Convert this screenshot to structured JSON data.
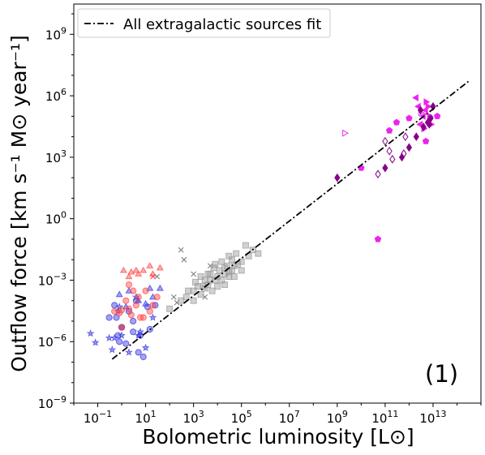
{
  "chart_data": {
    "type": "scatter",
    "title": "",
    "xlabel": "Bolometric luminosity [L⊙]",
    "ylabel": "Outflow force [km s⁻¹ M⊙ year⁻¹]",
    "x_scale": "log",
    "y_scale": "log",
    "xlim": [
      0.01,
      1000000000000000.0
    ],
    "ylim": [
      1e-09,
      30000000000.0
    ],
    "x_ticks": [
      {
        "value": 0.1,
        "base": "10",
        "exp": "−1"
      },
      {
        "value": 10,
        "base": "10",
        "exp": "1"
      },
      {
        "value": 1000,
        "base": "10",
        "exp": "3"
      },
      {
        "value": 100000,
        "base": "10",
        "exp": "5"
      },
      {
        "value": 10000000,
        "base": "10",
        "exp": "7"
      },
      {
        "value": 1000000000,
        "base": "10",
        "exp": "9"
      },
      {
        "value": 100000000000,
        "base": "10",
        "exp": "11"
      },
      {
        "value": 10000000000000,
        "base": "10",
        "exp": "13"
      }
    ],
    "y_ticks": [
      {
        "value": 1e-09,
        "base": "10",
        "exp": "−9"
      },
      {
        "value": 1e-06,
        "base": "10",
        "exp": "−6"
      },
      {
        "value": 0.001,
        "base": "10",
        "exp": "−3"
      },
      {
        "value": 1,
        "base": "10",
        "exp": "0"
      },
      {
        "value": 1000,
        "base": "10",
        "exp": "3"
      },
      {
        "value": 1000000,
        "base": "10",
        "exp": "6"
      },
      {
        "value": 1000000000,
        "base": "10",
        "exp": "9"
      }
    ],
    "grid": false,
    "legend": {
      "location": "upper-left",
      "entry": "All extragalactic sources fit"
    },
    "annotation": "(1)",
    "fit_line": {
      "x": [
        0.4,
        300000000000000.0
      ],
      "y": [
        1.4e-07,
        5000000.0
      ],
      "style": "dash-dot",
      "color": "#000000"
    },
    "series": [
      {
        "marker": "star",
        "color": "#3333dd",
        "points": [
          [
            0.05,
            2.5e-06
          ],
          [
            0.08,
            9e-07
          ],
          [
            0.3,
            1.5e-06
          ],
          [
            0.4,
            4e-07
          ],
          [
            0.5,
            1.5e-06
          ],
          [
            0.7,
            3e-05
          ],
          [
            0.8,
            5e-05
          ],
          [
            1.0,
            2e-06
          ],
          [
            2,
            3e-07
          ],
          [
            4,
            0.00015
          ],
          [
            5,
            2e-06
          ],
          [
            6,
            3e-06
          ],
          [
            10,
            5e-07
          ],
          [
            20,
            1.5e-05
          ]
        ]
      },
      {
        "marker": "circle",
        "color": "#3333dd",
        "points": [
          [
            0.3,
            1.5e-05
          ],
          [
            0.5,
            6e-05
          ],
          [
            0.6,
            1.5e-05
          ],
          [
            0.7,
            2e-06
          ],
          [
            0.8,
            1e-06
          ],
          [
            1.0,
            5e-06
          ],
          [
            1.0,
            5e-06
          ],
          [
            1.5,
            8e-07
          ],
          [
            2,
            3e-05
          ],
          [
            3,
            1e-05
          ],
          [
            3,
            3e-06
          ],
          [
            4,
            0.0001
          ],
          [
            5,
            3e-07
          ],
          [
            6,
            2e-06
          ],
          [
            8,
            1.8e-07
          ],
          [
            12,
            5e-05
          ],
          [
            15,
            4e-06
          ],
          [
            25,
            6e-05
          ]
        ]
      },
      {
        "marker": "triangle",
        "color": "#3333dd",
        "points": [
          [
            0.8,
            0.0002
          ],
          [
            1.5,
            5e-05
          ],
          [
            2,
            0.0003
          ],
          [
            5,
            0.0001
          ],
          [
            10,
            7e-05
          ],
          [
            15,
            0.0004
          ],
          [
            20,
            0.00015
          ],
          [
            40,
            0.0004
          ]
        ]
      },
      {
        "marker": "circle",
        "color": "#ff4444",
        "points": [
          [
            0.5,
            3e-05
          ],
          [
            0.8,
            2.5e-05
          ],
          [
            1.0,
            3.5e-05
          ],
          [
            1.0,
            5e-06
          ],
          [
            1.5,
            0.0001
          ],
          [
            2,
            4e-05
          ],
          [
            2,
            0.0006
          ],
          [
            2.5,
            2e-05
          ],
          [
            3,
            0.0003
          ],
          [
            4,
            6e-05
          ],
          [
            5,
            0.00015
          ],
          [
            6,
            1.5e-05
          ],
          [
            8,
            1.5e-05
          ],
          [
            10,
            0.0003
          ],
          [
            15,
            3e-05
          ],
          [
            20,
            6e-05
          ],
          [
            30,
            0.00015
          ]
        ]
      },
      {
        "marker": "triangle",
        "color": "#ff4444",
        "points": [
          [
            1.2,
            0.003
          ],
          [
            2,
            0.0015
          ],
          [
            2.5,
            0.0025
          ],
          [
            4,
            0.003
          ],
          [
            5,
            0.002
          ],
          [
            8,
            0.003
          ],
          [
            15,
            0.005
          ],
          [
            20,
            0.002
          ],
          [
            40,
            0.004
          ]
        ]
      },
      {
        "marker": "x",
        "color": "#808080",
        "points": [
          [
            30,
            0.0015
          ],
          [
            150,
            0.00015
          ],
          [
            200,
            8e-05
          ],
          [
            300,
            0.03
          ],
          [
            400,
            0.01
          ],
          [
            1000,
            0.002
          ],
          [
            3000,
            0.00015
          ],
          [
            5000,
            0.005
          ]
        ]
      },
      {
        "marker": "x",
        "color": "#ff4444",
        "points": [
          [
            20,
            0.0015
          ]
        ]
      },
      {
        "marker": "square",
        "color": "#999999",
        "points": [
          [
            100,
            4e-05
          ],
          [
            300,
            0.0001
          ],
          [
            500,
            0.00015
          ],
          [
            1000,
            0.0003
          ],
          [
            1000,
            0.0001
          ],
          [
            1500,
            0.0005
          ],
          [
            2000,
            0.0015
          ],
          [
            2000,
            0.0002
          ],
          [
            2500,
            0.0005
          ],
          [
            3000,
            0.0004
          ],
          [
            3000,
            0.001
          ],
          [
            4000,
            0.0006
          ],
          [
            5000,
            0.002
          ],
          [
            5000,
            0.001
          ],
          [
            6000,
            0.0003
          ],
          [
            7000,
            0.004
          ],
          [
            8000,
            0.001
          ],
          [
            10000,
            0.0015
          ],
          [
            10000,
            0.0005
          ],
          [
            12000,
            0.003
          ],
          [
            15000,
            0.008
          ],
          [
            15000,
            0.001
          ],
          [
            20000,
            0.002
          ],
          [
            20000,
            0.0006
          ],
          [
            25000,
            0.005
          ],
          [
            30000,
            0.0015
          ],
          [
            30000,
            0.0025
          ],
          [
            40000,
            0.01
          ],
          [
            40000,
            0.003
          ],
          [
            50000,
            0.005
          ],
          [
            50000,
            0.0015
          ],
          [
            60000,
            0.02
          ],
          [
            70000,
            0.006
          ],
          [
            100000,
            0.003
          ],
          [
            100000,
            0.008
          ],
          [
            150000,
            0.05
          ],
          [
            200000,
            0.015
          ],
          [
            300000,
            0.03
          ],
          [
            500000,
            0.02
          ],
          [
            30000,
            0.015
          ],
          [
            20000,
            0.004
          ],
          [
            8000,
            0.006
          ],
          [
            4000,
            0.002
          ],
          [
            1200,
            0.0008
          ],
          [
            600,
            0.0003
          ]
        ]
      },
      {
        "marker": "triangle-right",
        "color": "#ee33ee",
        "filled": false,
        "points": [
          [
            2000000000.0,
            15000.0
          ],
          [
            3000000000000.0,
            150000.0
          ]
        ]
      },
      {
        "marker": "triangle-right",
        "color": "#ee22ee",
        "points": [
          [
            5000000000000.0,
            500000.0
          ],
          [
            6000000000000.0,
            300000.0
          ],
          [
            7000000000000.0,
            100000.0
          ],
          [
            8000000000000.0,
            40000.0
          ],
          [
            4000000000000.0,
            25000.0
          ]
        ]
      },
      {
        "marker": "triangle-left",
        "color": "#ee22ee",
        "points": [
          [
            2000000000000.0,
            800000.0
          ],
          [
            3000000000000.0,
            40000.0
          ],
          [
            4000000000000.0,
            100000.0
          ],
          [
            5000000000000.0,
            200000.0
          ],
          [
            2500000000000.0,
            300000.0
          ]
        ]
      },
      {
        "marker": "pentagon",
        "color": "#ee22ee",
        "points": [
          [
            10000000000.0,
            300
          ],
          [
            150000000000.0,
            20000.0
          ],
          [
            300000000000.0,
            50000.0
          ],
          [
            50000000000.0,
            0.1
          ],
          [
            5000000000000.0,
            6000.0
          ],
          [
            15000000000000.0,
            100000.0
          ],
          [
            1000000000000.0,
            80000.0
          ]
        ]
      },
      {
        "marker": "diamond",
        "color": "#880088",
        "filled": false,
        "points": [
          [
            50000000000.0,
            150
          ],
          [
            200000000000.0,
            800
          ],
          [
            600000000000.0,
            1500.0
          ],
          [
            150000000000.0,
            2000.0
          ],
          [
            700000000000.0,
            10000.0
          ],
          [
            100000000000.0,
            6000.0
          ]
        ]
      },
      {
        "marker": "diamond",
        "color": "#880088",
        "points": [
          [
            1000000000.0,
            100
          ],
          [
            100000000000.0,
            300
          ],
          [
            500000000000.0,
            1000.0
          ],
          [
            1000000000000.0,
            3000.0
          ],
          [
            2000000000000.0,
            10000.0
          ],
          [
            4000000000000.0,
            30000.0
          ],
          [
            6000000000000.0,
            50000.0
          ],
          [
            8000000000000.0,
            80000.0
          ],
          [
            3000000000000.0,
            200000.0
          ],
          [
            10000000000000.0,
            300000.0
          ],
          [
            7000000000000.0,
            40000.0
          ]
        ]
      }
    ]
  }
}
